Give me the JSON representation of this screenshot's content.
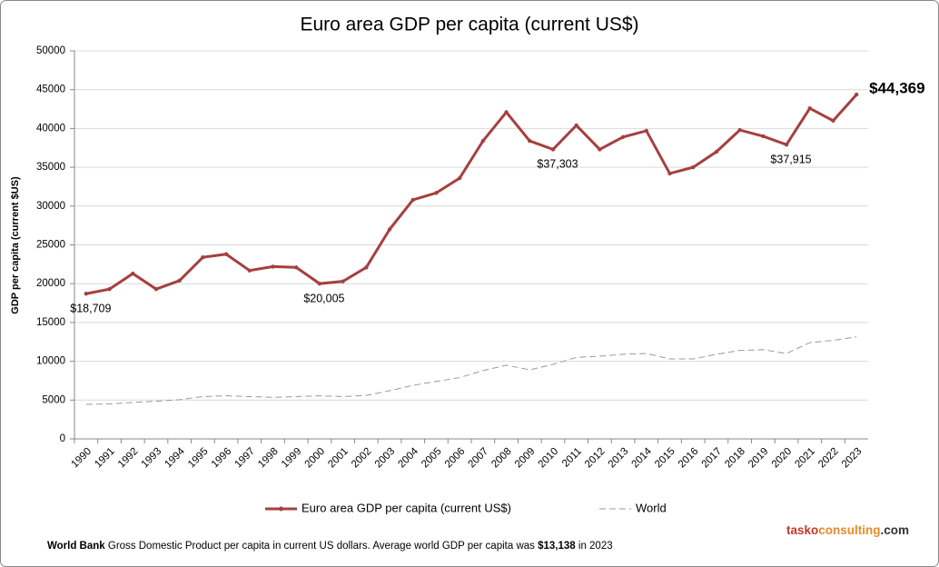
{
  "chart_data": {
    "type": "line",
    "title": "Euro area GDP per capita (current US$)",
    "y_label": "GDP per capita (current $US)",
    "categories": [
      "1990",
      "1991",
      "1992",
      "1993",
      "1994",
      "1995",
      "1996",
      "1997",
      "1998",
      "1999",
      "2000",
      "2001",
      "2002",
      "2003",
      "2004",
      "2005",
      "2006",
      "2007",
      "2008",
      "2009",
      "2010",
      "2011",
      "2012",
      "2013",
      "2014",
      "2015",
      "2016",
      "2017",
      "2018",
      "2019",
      "2020",
      "2021",
      "2022",
      "2023"
    ],
    "series": [
      {
        "name": "Euro area GDP per capita (current US$)",
        "color": "#a5403e",
        "style": "solid",
        "markers": true,
        "values": [
          18709,
          19300,
          21300,
          19300,
          20400,
          23400,
          23800,
          21700,
          22200,
          22100,
          20005,
          20300,
          22100,
          27000,
          30800,
          31700,
          33600,
          38400,
          42100,
          38400,
          37303,
          40400,
          37300,
          38900,
          39700,
          34200,
          35000,
          37000,
          39800,
          39000,
          37915,
          42600,
          41000,
          44369
        ],
        "value_labels": [
          "$18,709",
          null,
          null,
          null,
          null,
          null,
          null,
          null,
          null,
          null,
          "$20,005",
          null,
          null,
          null,
          null,
          null,
          null,
          null,
          null,
          null,
          "$37,303",
          null,
          null,
          null,
          null,
          null,
          null,
          null,
          null,
          null,
          "$37,915",
          null,
          null,
          "$44,369"
        ]
      },
      {
        "name": "World",
        "color": "#999999",
        "style": "dashed",
        "markers": false,
        "values": [
          4450,
          4500,
          4700,
          4850,
          5050,
          5450,
          5550,
          5450,
          5350,
          5450,
          5550,
          5450,
          5600,
          6200,
          6900,
          7400,
          7900,
          8800,
          9500,
          8900,
          9600,
          10500,
          10650,
          10900,
          11000,
          10300,
          10300,
          10900,
          11400,
          11500,
          11000,
          12400,
          12700,
          13138
        ]
      }
    ],
    "ylim": [
      0,
      50000
    ],
    "yticks": [
      0,
      5000,
      10000,
      15000,
      20000,
      25000,
      30000,
      35000,
      40000,
      45000,
      50000
    ],
    "grid": true,
    "legend": "bottom"
  },
  "footer": {
    "source": "World Bank",
    "text": "Gross Domestic Product per capita in current US dollars.  Average world GDP per capita was",
    "highlight": "$13,138",
    "tail": "in 2023"
  },
  "brand": {
    "part1": "tasko",
    "part2": "consulting",
    "part3": ".com"
  }
}
